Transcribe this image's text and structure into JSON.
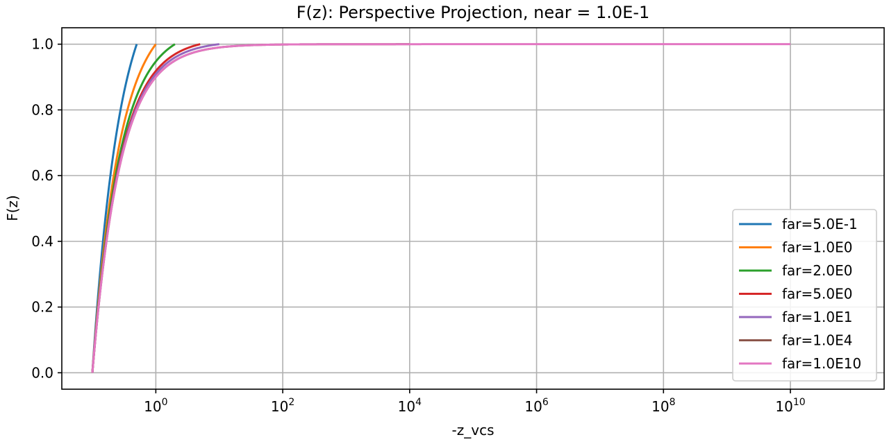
{
  "chart_data": {
    "type": "line",
    "title": "F(z): Perspective Projection, near = 1.0E-1",
    "xlabel": "-z_vcs",
    "ylabel": "F(z)",
    "xscale": "log",
    "xlim": [
      0.033,
      300000000000
    ],
    "ylim": [
      -0.05,
      1.05
    ],
    "grid": true,
    "legend_position": "lower-right",
    "near": 0.1,
    "x_ticks": [
      {
        "value": 1,
        "base": "10",
        "exp": "0"
      },
      {
        "value": 100,
        "base": "10",
        "exp": "2"
      },
      {
        "value": 10000,
        "base": "10",
        "exp": "4"
      },
      {
        "value": 1000000,
        "base": "10",
        "exp": "6"
      },
      {
        "value": 100000000,
        "base": "10",
        "exp": "8"
      },
      {
        "value": 10000000000,
        "base": "10",
        "exp": "10"
      }
    ],
    "y_ticks": [
      {
        "value": 0.0,
        "label": "0.0"
      },
      {
        "value": 0.2,
        "label": "0.2"
      },
      {
        "value": 0.4,
        "label": "0.4"
      },
      {
        "value": 0.6,
        "label": "0.6"
      },
      {
        "value": 0.8,
        "label": "0.8"
      },
      {
        "value": 1.0,
        "label": "1.0"
      }
    ],
    "series": [
      {
        "name": "far=5.0E-1",
        "far": 0.5,
        "color": "#1f77b4"
      },
      {
        "name": "far=1.0E0",
        "far": 1.0,
        "color": "#ff7f0e"
      },
      {
        "name": "far=2.0E0",
        "far": 2.0,
        "color": "#2ca02c"
      },
      {
        "name": "far=5.0E0",
        "far": 5.0,
        "color": "#d62728"
      },
      {
        "name": "far=1.0E1",
        "far": 10.0,
        "color": "#9467bd"
      },
      {
        "name": "far=1.0E4",
        "far": 10000.0,
        "color": "#8c564b"
      },
      {
        "name": "far=1.0E10",
        "far": 10000000000.0,
        "color": "#e377c2"
      }
    ]
  }
}
